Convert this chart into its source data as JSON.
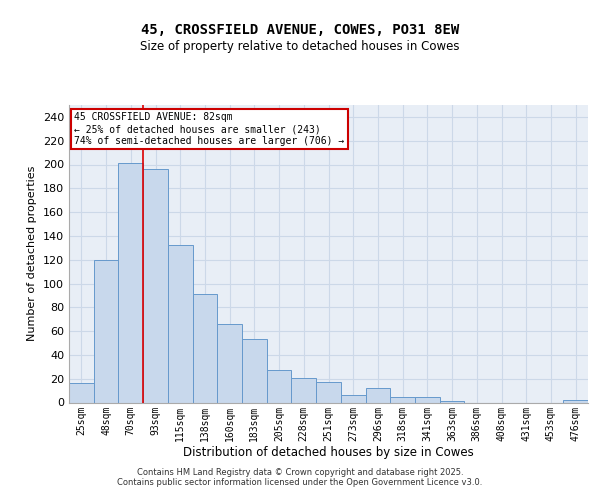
{
  "title": "45, CROSSFIELD AVENUE, COWES, PO31 8EW",
  "subtitle": "Size of property relative to detached houses in Cowes",
  "xlabel": "Distribution of detached houses by size in Cowes",
  "ylabel": "Number of detached properties",
  "bar_labels": [
    "25sqm",
    "48sqm",
    "70sqm",
    "93sqm",
    "115sqm",
    "138sqm",
    "160sqm",
    "183sqm",
    "205sqm",
    "228sqm",
    "251sqm",
    "273sqm",
    "296sqm",
    "318sqm",
    "341sqm",
    "363sqm",
    "386sqm",
    "408sqm",
    "431sqm",
    "453sqm",
    "476sqm"
  ],
  "bar_values": [
    16,
    120,
    201,
    196,
    132,
    91,
    66,
    53,
    27,
    21,
    17,
    6,
    12,
    5,
    5,
    1,
    0,
    0,
    0,
    0,
    2
  ],
  "bar_color": "#c8d8ec",
  "bar_edge_color": "#6699cc",
  "grid_color": "#ccd8e8",
  "background_color": "#e8eef6",
  "red_line_index": 2,
  "annotation_text": "45 CROSSFIELD AVENUE: 82sqm\n← 25% of detached houses are smaller (243)\n74% of semi-detached houses are larger (706) →",
  "annotation_box_color": "#ffffff",
  "annotation_box_edge": "#cc0000",
  "footer_text": "Contains HM Land Registry data © Crown copyright and database right 2025.\nContains public sector information licensed under the Open Government Licence v3.0.",
  "ylim": [
    0,
    250
  ],
  "yticks": [
    0,
    20,
    40,
    60,
    80,
    100,
    120,
    140,
    160,
    180,
    200,
    220,
    240
  ],
  "title_fontsize": 10,
  "subtitle_fontsize": 8.5,
  "ylabel_fontsize": 8,
  "xlabel_fontsize": 8.5,
  "tick_fontsize": 7,
  "footer_fontsize": 6,
  "annotation_fontsize": 7
}
